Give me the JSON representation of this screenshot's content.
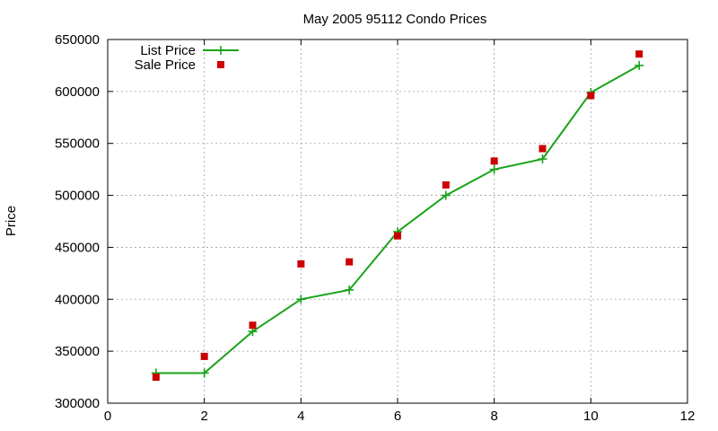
{
  "chart_data": {
    "type": "line",
    "title": "May 2005 95112 Condo Prices",
    "ylabel": "Price",
    "xlabel": "",
    "xlim": [
      0,
      12
    ],
    "ylim": [
      300000,
      650000
    ],
    "x_ticks": [
      "0",
      "2",
      "4",
      "6",
      "8",
      "10",
      "12"
    ],
    "y_ticks": [
      "300000",
      "350000",
      "400000",
      "450000",
      "500000",
      "550000",
      "600000",
      "650000"
    ],
    "grid": true,
    "legend_position": "top-left",
    "series": [
      {
        "name": "List Price",
        "style": "line-with-plus-markers",
        "color": "#1aa31a",
        "x": [
          1,
          2,
          3,
          4,
          5,
          6,
          7,
          8,
          9,
          10,
          11
        ],
        "y": [
          329000,
          329000,
          369000,
          400000,
          409000,
          465000,
          500000,
          525000,
          535000,
          599000,
          625000
        ]
      },
      {
        "name": "Sale Price",
        "style": "square-markers",
        "color": "#cc0000",
        "x": [
          1,
          2,
          3,
          4,
          5,
          6,
          7,
          8,
          9,
          10,
          11
        ],
        "y": [
          325000,
          345000,
          375000,
          434000,
          436000,
          461000,
          510000,
          533000,
          545000,
          596000,
          636000
        ]
      }
    ]
  }
}
